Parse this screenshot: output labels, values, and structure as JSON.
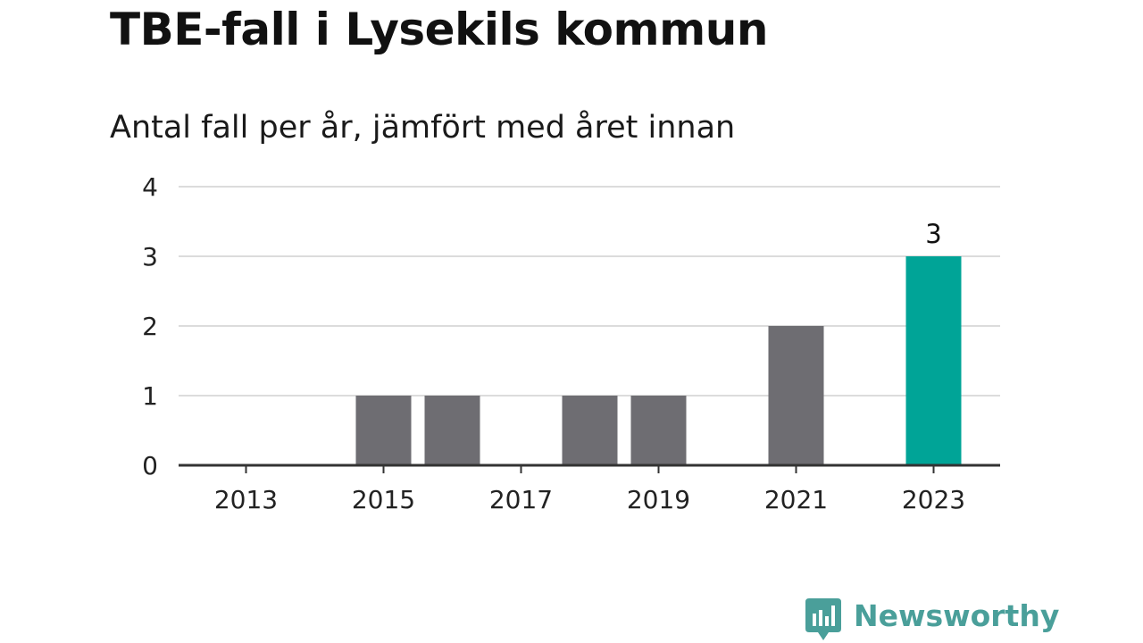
{
  "header": {
    "title": "TBE-fall i Lysekils kommun",
    "subtitle": "Antal fall per år, jämfört med året innan"
  },
  "chart_data": {
    "type": "bar",
    "title": "TBE-fall i Lysekils kommun",
    "subtitle": "Antal fall per år, jämfört med året innan",
    "categories": [
      2013,
      2014,
      2015,
      2016,
      2017,
      2018,
      2019,
      2020,
      2021,
      2022,
      2023
    ],
    "values": [
      0,
      0,
      1,
      1,
      0,
      1,
      1,
      0,
      2,
      0,
      3
    ],
    "x_tick_labels": [
      "2013",
      "2015",
      "2017",
      "2019",
      "2021",
      "2023"
    ],
    "y_tick_labels": [
      "0",
      "1",
      "2",
      "3",
      "4"
    ],
    "ylim": [
      0,
      4
    ],
    "grid": true,
    "highlight": {
      "category": 2023,
      "label": "3"
    },
    "colors": {
      "bar": "#6e6d72",
      "highlight": "#00a497",
      "grid": "#dcdcdc",
      "axis": "#333333"
    }
  },
  "footer": {
    "brand": "Newsworthy",
    "brand_color": "#4a9f9a",
    "logo_icon": "newsworthy-logo-icon"
  }
}
